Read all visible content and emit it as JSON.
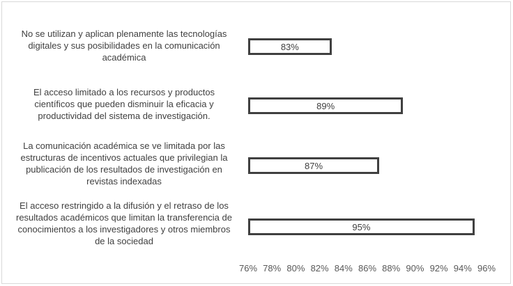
{
  "chart_data": {
    "type": "bar",
    "orientation": "horizontal",
    "categories": [
      "No se utilizan y aplican plenamente las tecnologías digitales y sus posibilidades en la comunicación académica",
      "El acceso limitado a los recursos y productos científicos que pueden disminuir la eficacia y productividad del sistema de investigación.",
      "La comunicación académica se ve limitada por las estructuras de incentivos actuales que privilegian la publicación de los resultados de investigación en revistas indexadas",
      "El acceso restringido a la difusión y el retraso de los resultados académicos que limitan la transferencia de conocimientos a los investigadores y otros miembros de la sociedad"
    ],
    "values": [
      83,
      89,
      87,
      95
    ],
    "value_labels": [
      "83%",
      "89%",
      "87%",
      "95%"
    ],
    "xlim": [
      76,
      96
    ],
    "ticks": [
      "76%",
      "78%",
      "80%",
      "82%",
      "84%",
      "86%",
      "88%",
      "90%",
      "92%",
      "94%",
      "96%"
    ],
    "grid": false,
    "legend": "none",
    "colors": {
      "bar_border": "#404040",
      "bar_fill": "#ffffff",
      "text": "#404040"
    }
  }
}
